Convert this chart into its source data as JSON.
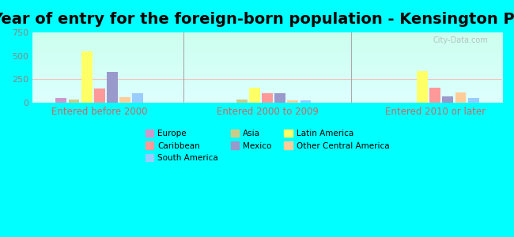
{
  "title": "Year of entry for the foreign-born population - Kensington Park",
  "groups": [
    "Entered before 2000",
    "Entered 2000 to 2009",
    "Entered 2010 or later"
  ],
  "categories": [
    "Europe",
    "Asia",
    "Latin America",
    "Caribbean",
    "Mexico",
    "Other Central America",
    "South America"
  ],
  "colors": {
    "Europe": "#cc99cc",
    "Asia": "#cccc88",
    "Latin America": "#ffff66",
    "Caribbean": "#ff9999",
    "Mexico": "#9999cc",
    "Other Central America": "#ffcc99",
    "South America": "#99ccff"
  },
  "values": {
    "Entered before 2000": {
      "Europe": 50,
      "Asia": 30,
      "Latin America": 550,
      "Caribbean": 150,
      "Mexico": 330,
      "Other Central America": 55,
      "South America": 100
    },
    "Entered 2000 to 2009": {
      "Europe": 0,
      "Asia": 30,
      "Latin America": 155,
      "Caribbean": 100,
      "Mexico": 100,
      "Other Central America": 25,
      "South America": 25
    },
    "Entered 2010 or later": {
      "Europe": 0,
      "Asia": 0,
      "Latin America": 335,
      "Caribbean": 155,
      "Mexico": 65,
      "Other Central America": 110,
      "South America": 45
    }
  },
  "ylim": [
    0,
    750
  ],
  "yticks": [
    0,
    250,
    500,
    750
  ],
  "background_color": "#00ffff",
  "plot_bg_top": "#ccffff",
  "plot_bg_bottom": "#ccffcc",
  "watermark": "City-Data.com",
  "title_fontsize": 14,
  "xlabel_color": "#cc6666",
  "axis_text_color": "#888888"
}
